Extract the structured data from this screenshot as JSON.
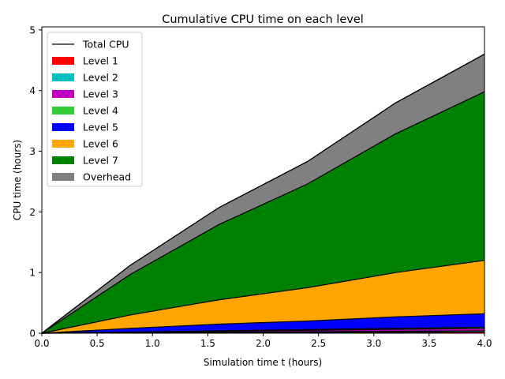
{
  "chart_data": {
    "type": "area",
    "title": "Cumulative CPU time on each level",
    "xlabel": "Simulation time t (hours)",
    "ylabel": "CPU time (hours)",
    "xlim": [
      0.0,
      4.0
    ],
    "ylim": [
      0.0,
      5.05
    ],
    "xticks": [
      0.0,
      0.5,
      1.0,
      1.5,
      2.0,
      2.5,
      3.0,
      3.5,
      4.0
    ],
    "xtick_labels": [
      "0.0",
      "0.5",
      "1.0",
      "1.5",
      "2.0",
      "2.5",
      "3.0",
      "3.5",
      "4.0"
    ],
    "yticks": [
      0,
      1,
      2,
      3,
      4,
      5
    ],
    "ytick_labels": [
      "0",
      "1",
      "2",
      "3",
      "4",
      "5"
    ],
    "grid": false,
    "stacked": true,
    "legend_position": "top-left",
    "x": [
      0.0,
      0.8,
      1.6,
      2.4,
      3.2,
      4.0
    ],
    "total": {
      "name": "Total CPU",
      "color": "#000000",
      "values": [
        0.0,
        1.12,
        2.07,
        2.83,
        3.8,
        4.6
      ]
    },
    "series": [
      {
        "name": "Level 1",
        "color": "#ff0000",
        "values": [
          0.0,
          0.004,
          0.008,
          0.012,
          0.016,
          0.02
        ]
      },
      {
        "name": "Level 2",
        "color": "#00bfbf",
        "values": [
          0.0,
          0.004,
          0.008,
          0.012,
          0.016,
          0.02
        ]
      },
      {
        "name": "Level 3",
        "color": "#bf00bf",
        "values": [
          0.0,
          0.008,
          0.016,
          0.024,
          0.032,
          0.04
        ]
      },
      {
        "name": "Level 4",
        "color": "#32cd32",
        "values": [
          0.0,
          0.004,
          0.008,
          0.012,
          0.016,
          0.02
        ]
      },
      {
        "name": "Level 5",
        "color": "#0000ff",
        "values": [
          0.0,
          0.06,
          0.11,
          0.14,
          0.19,
          0.22
        ]
      },
      {
        "name": "Level 6",
        "color": "#ffa500",
        "values": [
          0.0,
          0.22,
          0.4,
          0.55,
          0.73,
          0.88
        ]
      },
      {
        "name": "Level 7",
        "color": "#008000",
        "values": [
          0.0,
          0.67,
          1.24,
          1.71,
          2.29,
          2.78
        ]
      },
      {
        "name": "Overhead",
        "color": "#808080",
        "values": [
          0.0,
          0.15,
          0.28,
          0.37,
          0.51,
          0.62
        ]
      }
    ]
  }
}
